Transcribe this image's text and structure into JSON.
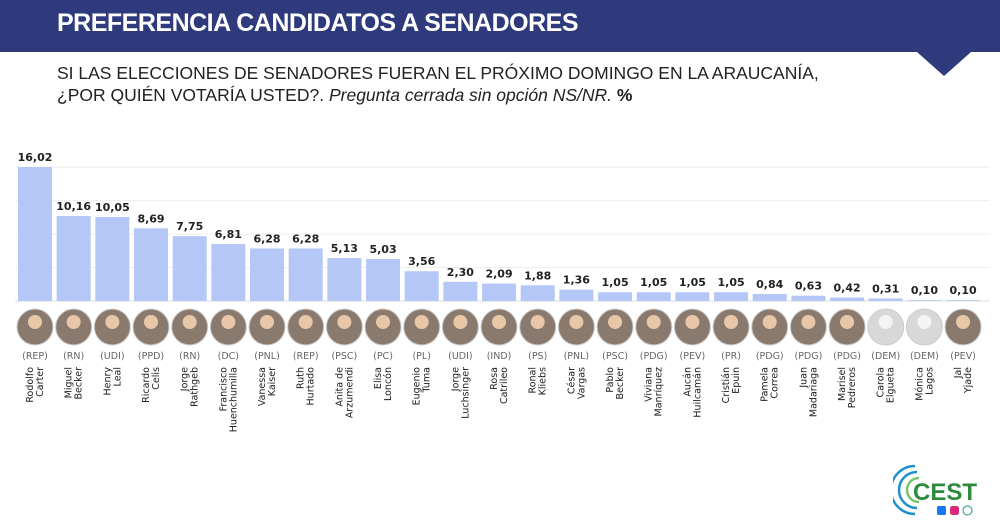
{
  "header": {
    "title": "PREFERENCIA CANDIDATOS A SENADORES"
  },
  "subtitle": {
    "line1": "SI LAS ELECCIONES DE SENADORES FUERAN EL PRÓXIMO DOMINGO EN LA ARAUCANÍA,",
    "line2_main": "¿POR QUIÉN VOTARÍA USTED?.",
    "line2_note": "Pregunta cerrada sin opción NS/NR.",
    "unit": "%"
  },
  "logo": {
    "text": "CEST",
    "colors": {
      "green": "#2e8b3e",
      "blue": "#1f8fd0"
    }
  },
  "chart_data": {
    "type": "bar",
    "title": "PREFERENCIA CANDIDATOS A SENADORES",
    "unit": "%",
    "bar_color": "#b4c7f7",
    "grid": true,
    "ylim": [
      0,
      16.02
    ],
    "categories": [
      {
        "first": "Rodolfo",
        "last": "Carter",
        "party": "(REP)"
      },
      {
        "first": "Miguel",
        "last": "Becker",
        "party": "(RN)"
      },
      {
        "first": "Henry",
        "last": "Leal",
        "party": "(UDI)"
      },
      {
        "first": "Ricardo",
        "last": "Celis",
        "party": "(PPD)"
      },
      {
        "first": "Jorge",
        "last": "Rathgeb",
        "party": "(RN)"
      },
      {
        "first": "Francisco",
        "last": "Huenchumilla",
        "party": "(DC)"
      },
      {
        "first": "Vanessa",
        "last": "Kaiser",
        "party": "(PNL)"
      },
      {
        "first": "Ruth",
        "last": "Hurtado",
        "party": "(REP)"
      },
      {
        "first": "Anita de",
        "last": "Arzumendi",
        "party": "(PSC)"
      },
      {
        "first": "Elisa",
        "last": "Loncón",
        "party": "(PC)"
      },
      {
        "first": "Eugenio",
        "last": "Tuma",
        "party": "(PL)"
      },
      {
        "first": "Jorge",
        "last": "Luchsinger",
        "party": "(UDI)"
      },
      {
        "first": "Rosa",
        "last": "Catrileo",
        "party": "(IND)"
      },
      {
        "first": "Ronal",
        "last": "Kliebs",
        "party": "(PS)"
      },
      {
        "first": "César",
        "last": "Vargas",
        "party": "(PNL)"
      },
      {
        "first": "Pablo",
        "last": "Becker",
        "party": "(PSC)"
      },
      {
        "first": "Viviana",
        "last": "Manríquez",
        "party": "(PDG)"
      },
      {
        "first": "Aucán",
        "last": "Huilcamán",
        "party": "(PEV)"
      },
      {
        "first": "Cristián",
        "last": "Epuin",
        "party": "(PR)"
      },
      {
        "first": "Pamela",
        "last": "Correa",
        "party": "(PDG)"
      },
      {
        "first": "Juan",
        "last": "Madariaga",
        "party": "(PDG)"
      },
      {
        "first": "Marisel",
        "last": "Pedreros",
        "party": "(PDG)"
      },
      {
        "first": "Carola",
        "last": "Elgueta",
        "party": "(DEM)"
      },
      {
        "first": "Mónica",
        "last": "Lagos",
        "party": "(DEM)"
      },
      {
        "first": "Jal",
        "last": "Yjade",
        "party": "(PEV)"
      }
    ],
    "values": [
      16.02,
      10.16,
      10.05,
      8.69,
      7.75,
      6.81,
      6.28,
      6.28,
      5.13,
      5.03,
      3.56,
      2.3,
      2.09,
      1.88,
      1.36,
      1.05,
      1.05,
      1.05,
      1.05,
      0.84,
      0.63,
      0.42,
      0.31,
      0.1,
      0.1
    ],
    "labels": [
      "16,02",
      "10,16",
      "10,05",
      "8,69",
      "7,75",
      "6,81",
      "6,28",
      "6,28",
      "5,13",
      "5,03",
      "3,56",
      "2,30",
      "2,09",
      "1,88",
      "1,36",
      "1,05",
      "1,05",
      "1,05",
      "1,05",
      "0,84",
      "0,63",
      "0,42",
      "0,31",
      "0,10",
      "0,10"
    ]
  }
}
